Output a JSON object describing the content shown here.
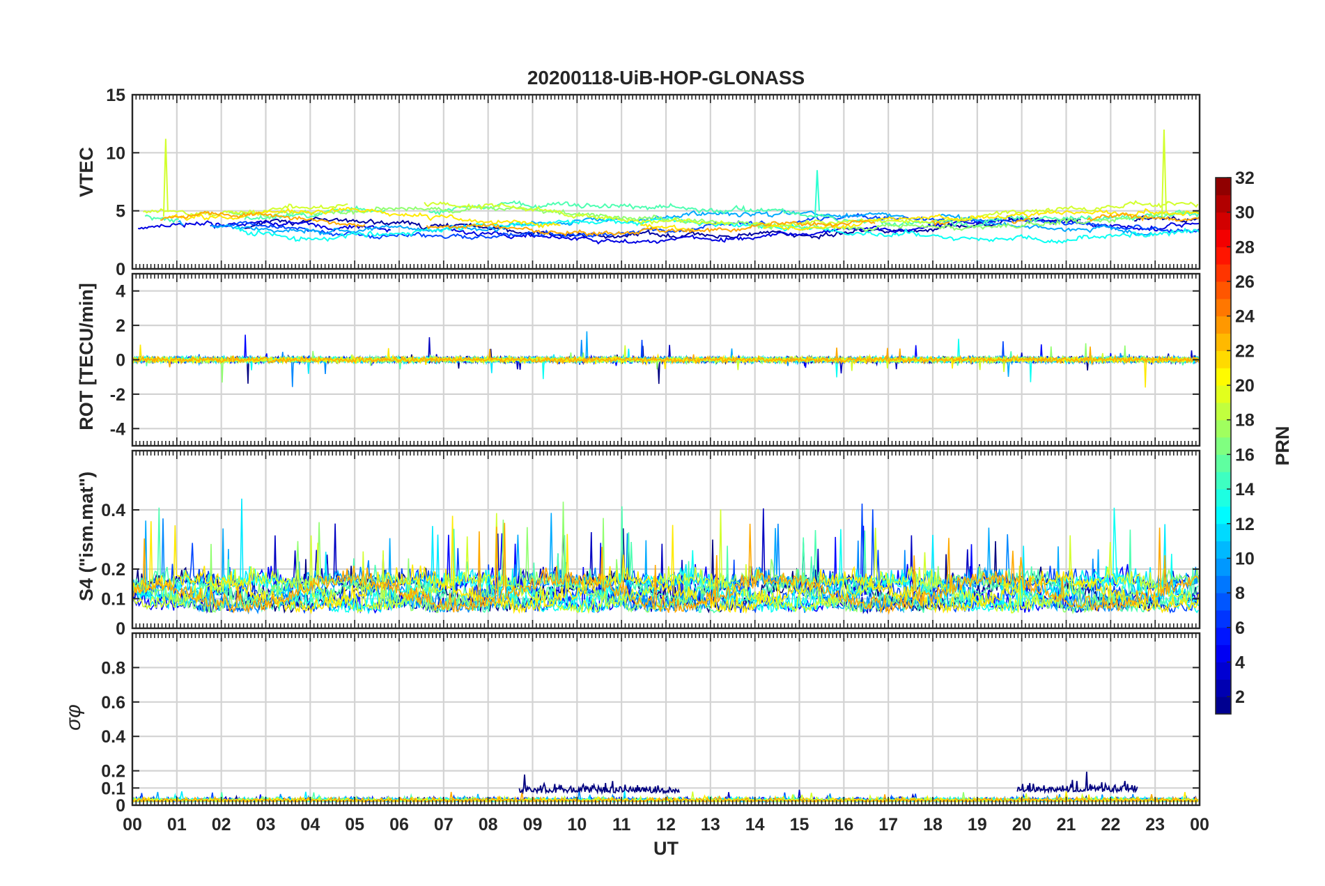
{
  "chart_data": {
    "type": "line",
    "title": "20200118-UiB-HOP-GLONASS",
    "xlabel": "UT",
    "x_tick_labels": [
      "00",
      "01",
      "02",
      "03",
      "04",
      "05",
      "06",
      "07",
      "08",
      "09",
      "10",
      "11",
      "12",
      "13",
      "14",
      "15",
      "16",
      "17",
      "18",
      "19",
      "20",
      "21",
      "22",
      "23",
      "00"
    ],
    "x_range_hours": [
      0,
      24
    ],
    "grid": true,
    "colorbar": {
      "label": "PRN",
      "range": [
        1,
        32
      ],
      "ticks": [
        "2",
        "4",
        "6",
        "8",
        "10",
        "12",
        "14",
        "16",
        "18",
        "20",
        "22",
        "24",
        "26",
        "28",
        "30",
        "32"
      ],
      "colormap": "jet",
      "placement": "right"
    },
    "panels": [
      {
        "name": "vtec",
        "ylabel": "VTEC",
        "ylim": [
          0,
          15
        ],
        "y_tick_labels": [
          "0",
          "5",
          "10",
          "15"
        ],
        "series_summary": [
          {
            "prn": 2,
            "level": 3.5,
            "noise": 0.5
          },
          {
            "prn": 4,
            "level": 3.2,
            "noise": 0.5
          },
          {
            "prn": 7,
            "level": 3.6,
            "noise": 0.5
          },
          {
            "prn": 10,
            "level": 4.0,
            "noise": 0.5
          },
          {
            "prn": 13,
            "level": 3.4,
            "noise": 0.6
          },
          {
            "prn": 15,
            "level": 4.8,
            "noise": 0.6
          },
          {
            "prn": 17,
            "level": 4.3,
            "noise": 0.6
          },
          {
            "prn": 19,
            "level": 4.6,
            "noise": 0.5
          },
          {
            "prn": 21,
            "level": 4.1,
            "noise": 0.5
          },
          {
            "prn": 23,
            "level": 3.9,
            "noise": 0.5
          }
        ],
        "spikes": [
          {
            "hour": 0.75,
            "value": 11.2,
            "prn": 19
          },
          {
            "hour": 15.4,
            "value": 8.5,
            "prn": 14
          },
          {
            "hour": 23.2,
            "value": 12.0,
            "prn": 19
          }
        ]
      },
      {
        "name": "rot",
        "ylabel": "ROT [TECU/min]",
        "ylim": [
          -5,
          5
        ],
        "y_tick_labels": [
          "-4",
          "-2",
          "0",
          "2",
          "4"
        ],
        "typical_amplitude": 0.3
      },
      {
        "name": "s4",
        "ylabel": "S4 (\"ism.mat\")",
        "ylim": [
          0,
          0.6
        ],
        "y_tick_labels": [
          "0",
          "0.1",
          "0.2",
          "0.4"
        ],
        "typical_range": [
          0.05,
          0.35
        ]
      },
      {
        "name": "sigma_phi",
        "ylabel": "σφ",
        "ylim": [
          0,
          1.0
        ],
        "y_tick_labels": [
          "0",
          "0.1",
          "0.2",
          "0.4",
          "0.6",
          "0.8"
        ],
        "typical_range": [
          0.0,
          0.08
        ],
        "elevated_intervals": [
          {
            "start_hour": 8.7,
            "end_hour": 12.3,
            "prn": 1,
            "level": 0.12
          },
          {
            "start_hour": 19.9,
            "end_hour": 22.6,
            "prn": 1,
            "level": 0.13
          }
        ]
      }
    ]
  }
}
